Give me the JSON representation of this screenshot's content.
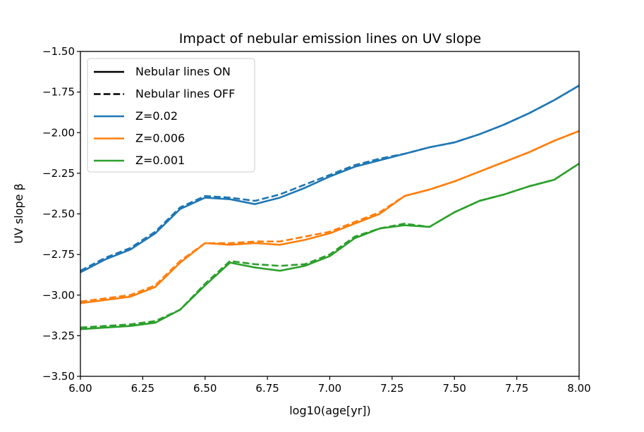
{
  "chart_data": {
    "type": "line",
    "title": "Impact of nebular emission lines on UV slope",
    "xlabel": "log10(age[yr])",
    "ylabel": "UV slope β",
    "xlim": [
      6.0,
      8.0
    ],
    "ylim": [
      -3.5,
      -1.5
    ],
    "grid": false,
    "legend_position": "upper-left",
    "x_ticks": [
      6.0,
      6.25,
      6.5,
      6.75,
      7.0,
      7.25,
      7.5,
      7.75,
      8.0
    ],
    "x_tick_labels": [
      "6.00",
      "6.25",
      "6.50",
      "6.75",
      "7.00",
      "7.25",
      "7.50",
      "7.75",
      "8.00"
    ],
    "y_ticks": [
      -3.5,
      -3.25,
      -3.0,
      -2.75,
      -2.5,
      -2.25,
      -2.0,
      -1.75,
      -1.5
    ],
    "y_tick_labels": [
      "−3.50",
      "−3.25",
      "−3.00",
      "−2.75",
      "−2.50",
      "−2.25",
      "−2.00",
      "−1.75",
      "−1.50"
    ],
    "legend": [
      {
        "label": "Nebular lines ON",
        "color": "#000000",
        "style": "solid"
      },
      {
        "label": "Nebular lines OFF",
        "color": "#000000",
        "style": "dashed"
      },
      {
        "label": "Z=0.02",
        "color": "#1f77b4",
        "style": "solid"
      },
      {
        "label": "Z=0.006",
        "color": "#ff7f0e",
        "style": "solid"
      },
      {
        "label": "Z=0.001",
        "color": "#2ca02c",
        "style": "solid"
      }
    ],
    "x": [
      6.0,
      6.1,
      6.2,
      6.3,
      6.4,
      6.5,
      6.6,
      6.7,
      6.8,
      6.9,
      7.0,
      7.1,
      7.2,
      7.3,
      7.4,
      7.5,
      7.6,
      7.7,
      7.8,
      7.9,
      8.0
    ],
    "series": [
      {
        "metallicity": "Z=0.02",
        "nebular": "ON",
        "color": "#1f77b4",
        "style": "solid",
        "values": [
          -2.86,
          -2.78,
          -2.72,
          -2.62,
          -2.47,
          -2.4,
          -2.41,
          -2.44,
          -2.4,
          -2.34,
          -2.27,
          -2.21,
          -2.17,
          -2.13,
          -2.09,
          -2.06,
          -2.01,
          -1.95,
          -1.88,
          -1.8,
          -1.71
        ]
      },
      {
        "metallicity": "Z=0.02",
        "nebular": "OFF",
        "color": "#1f77b4",
        "style": "dashed",
        "values": [
          -2.85,
          -2.77,
          -2.71,
          -2.61,
          -2.46,
          -2.39,
          -2.4,
          -2.42,
          -2.38,
          -2.32,
          -2.26,
          -2.2,
          -2.16,
          -2.13,
          -2.09,
          -2.06,
          -2.01,
          -1.95,
          -1.88,
          -1.8,
          -1.71
        ]
      },
      {
        "metallicity": "Z=0.006",
        "nebular": "ON",
        "color": "#ff7f0e",
        "style": "solid",
        "values": [
          -3.05,
          -3.03,
          -3.01,
          -2.95,
          -2.8,
          -2.68,
          -2.69,
          -2.68,
          -2.69,
          -2.66,
          -2.62,
          -2.56,
          -2.5,
          -2.39,
          -2.35,
          -2.3,
          -2.24,
          -2.18,
          -2.12,
          -2.05,
          -1.99
        ]
      },
      {
        "metallicity": "Z=0.006",
        "nebular": "OFF",
        "color": "#ff7f0e",
        "style": "dashed",
        "values": [
          -3.04,
          -3.02,
          -3.0,
          -2.94,
          -2.79,
          -2.68,
          -2.68,
          -2.67,
          -2.67,
          -2.64,
          -2.61,
          -2.55,
          -2.49,
          -2.39,
          -2.35,
          -2.3,
          -2.24,
          -2.18,
          -2.12,
          -2.05,
          -1.99
        ]
      },
      {
        "metallicity": "Z=0.001",
        "nebular": "ON",
        "color": "#2ca02c",
        "style": "solid",
        "values": [
          -3.21,
          -3.2,
          -3.19,
          -3.17,
          -3.09,
          -2.94,
          -2.8,
          -2.83,
          -2.85,
          -2.82,
          -2.76,
          -2.65,
          -2.59,
          -2.57,
          -2.58,
          -2.49,
          -2.42,
          -2.38,
          -2.33,
          -2.29,
          -2.19
        ]
      },
      {
        "metallicity": "Z=0.001",
        "nebular": "OFF",
        "color": "#2ca02c",
        "style": "dashed",
        "values": [
          -3.2,
          -3.19,
          -3.18,
          -3.16,
          -3.09,
          -2.93,
          -2.79,
          -2.81,
          -2.82,
          -2.81,
          -2.75,
          -2.64,
          -2.59,
          -2.56,
          -2.58,
          -2.49,
          -2.42,
          -2.38,
          -2.33,
          -2.29,
          -2.19
        ]
      }
    ]
  }
}
